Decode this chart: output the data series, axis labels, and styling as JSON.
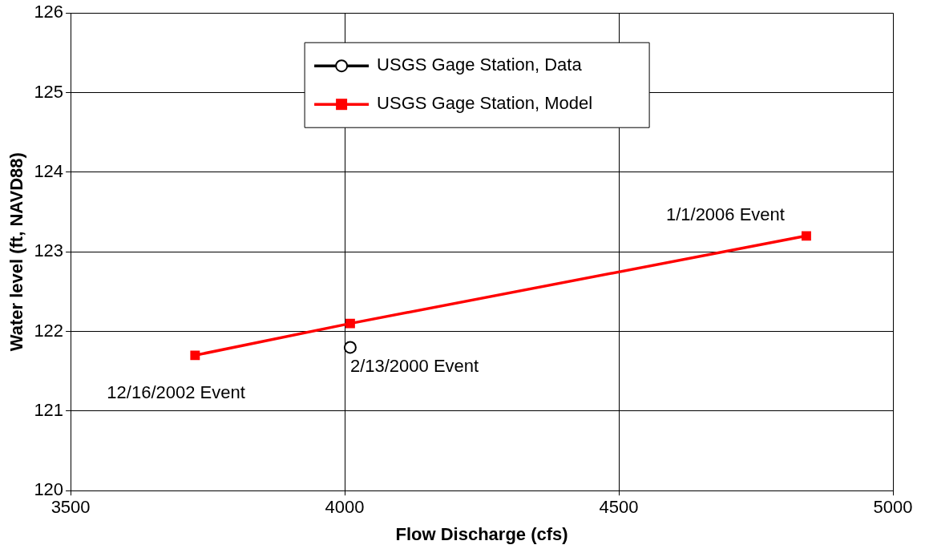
{
  "chart_data": {
    "type": "line",
    "xlabel": "Flow Discharge (cfs)",
    "ylabel": "Water level (ft, NAVD88)",
    "xlim": [
      3500,
      5000
    ],
    "xticks": [
      3500,
      4000,
      4500,
      5000
    ],
    "ylim": [
      120,
      126
    ],
    "yticks": [
      120,
      121,
      122,
      123,
      124,
      125,
      126
    ],
    "grid": true,
    "legend": "top",
    "series": [
      {
        "name": "USGS Gage Station, Data",
        "color": "#000000",
        "marker": "circle",
        "x": [
          4010
        ],
        "values": [
          121.8
        ]
      },
      {
        "name": "USGS Gage Station, Model",
        "color": "#ff0000",
        "marker": "square",
        "x": [
          3727,
          4010,
          4842
        ],
        "values": [
          121.7,
          122.1,
          123.2
        ]
      }
    ],
    "annotations": [
      {
        "text": "12/16/2002 Event",
        "x": 3727,
        "y": 121.7
      },
      {
        "text": "2/13/2000 Event",
        "x": 4010,
        "y": 121.8
      },
      {
        "text": "1/1/2006 Event",
        "x": 4842,
        "y": 123.2
      }
    ]
  }
}
